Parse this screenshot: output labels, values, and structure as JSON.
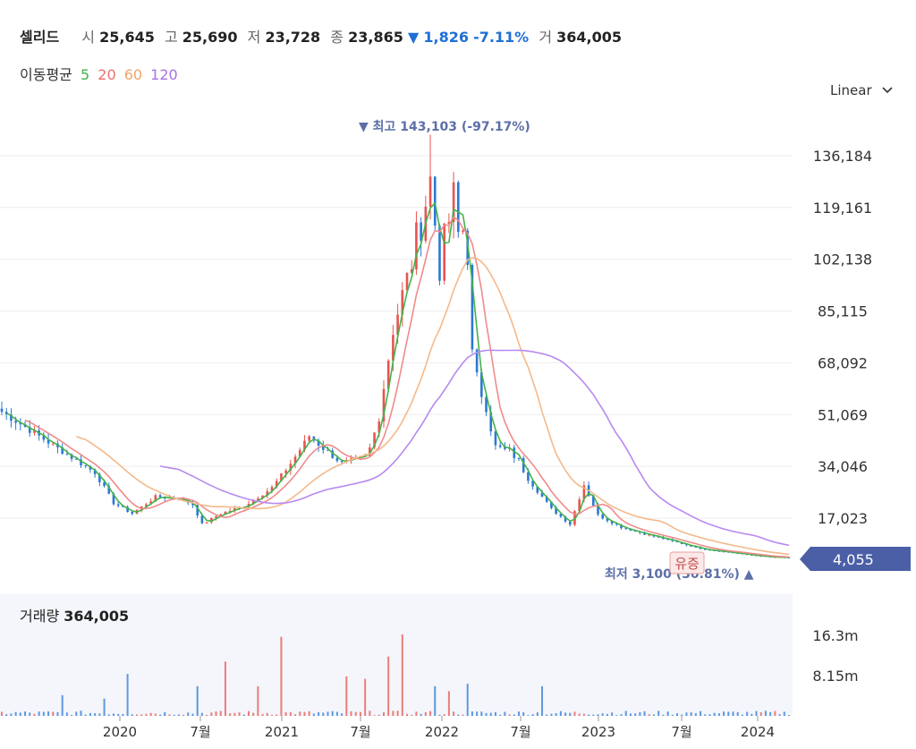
{
  "header": {
    "name": "셀리드",
    "open_label": "시",
    "open": "25,645",
    "high_label": "고",
    "high": "25,690",
    "low_label": "저",
    "low": "23,728",
    "close_label": "종",
    "close": "23,865",
    "change_arrow": "▼",
    "change": "1,826",
    "change_pct": "-7.11%",
    "volume_label": "거",
    "volume": "364,005"
  },
  "ma_legend": {
    "label": "이동평균",
    "items": [
      "5",
      "20",
      "60",
      "120"
    ]
  },
  "scale_selector": {
    "value": "Linear"
  },
  "annotations": {
    "high_text": "▼ 최고 143,103 (-97.17%)",
    "low_text": "최저 3,100 (30.81%) ▲",
    "badge": "유증",
    "current_price": "4,055"
  },
  "volume_header": {
    "label": "거래량",
    "value": "364,005"
  },
  "colors": {
    "up": "#e8544f",
    "down": "#2d78d4",
    "ma5": "#43b34a",
    "ma20": "#ef8b8b",
    "ma60": "#f4b98a",
    "ma120": "#b889f0",
    "change": "#1f6fd6",
    "price_tag": "#4a5fa6",
    "grid": "#eeeeee"
  },
  "chart_data": {
    "type": "candlestick",
    "price_axis_ticks": [
      136184,
      119161,
      102138,
      85115,
      68092,
      51069,
      34046,
      17023
    ],
    "price_axis_labels": [
      "136,184",
      "119,161",
      "102,138",
      "85,115",
      "68,092",
      "51,069",
      "34,046",
      "17,023"
    ],
    "ylim": [
      2000,
      150000
    ],
    "volume_axis_ticks": [
      16300000,
      8150000
    ],
    "volume_axis_labels": [
      "16.3m",
      "8.15m"
    ],
    "x_ticks": [
      "2020",
      "7월",
      "2021",
      "7월",
      "2022",
      "7월",
      "2023",
      "7월",
      "2024"
    ],
    "high": 143103,
    "low": 3100,
    "last": 4055,
    "moving_averages": [
      "5",
      "20",
      "60",
      "120"
    ],
    "close_path": [
      [
        0,
        52000
      ],
      [
        10,
        42000
      ],
      [
        20,
        32000
      ],
      [
        24,
        22000
      ],
      [
        28,
        18500
      ],
      [
        33,
        24000
      ],
      [
        38,
        23500
      ],
      [
        41,
        21500
      ],
      [
        43,
        15000
      ],
      [
        47,
        18500
      ],
      [
        52,
        21000
      ],
      [
        58,
        27000
      ],
      [
        62,
        35000
      ],
      [
        66,
        44000
      ],
      [
        69,
        40000
      ],
      [
        73,
        35000
      ],
      [
        78,
        37000
      ],
      [
        79,
        40000
      ],
      [
        81,
        50000
      ],
      [
        84,
        80000
      ],
      [
        87,
        95000
      ],
      [
        90,
        115000
      ],
      [
        92,
        128000
      ],
      [
        94,
        100000
      ],
      [
        96,
        115000
      ],
      [
        97,
        122000
      ],
      [
        98,
        110000
      ],
      [
        99,
        112000
      ],
      [
        100,
        105000
      ],
      [
        101,
        70000
      ],
      [
        102,
        62000
      ],
      [
        104,
        55000
      ],
      [
        106,
        40000
      ],
      [
        110,
        38000
      ],
      [
        113,
        30000
      ],
      [
        115,
        26000
      ],
      [
        118,
        20000
      ],
      [
        122,
        15000
      ],
      [
        125,
        28000
      ],
      [
        128,
        18000
      ],
      [
        133,
        14000
      ],
      [
        140,
        11000
      ],
      [
        150,
        7000
      ],
      [
        160,
        5000
      ],
      [
        165,
        4200
      ],
      [
        169,
        4055
      ]
    ],
    "volume_spikes": [
      [
        13,
        4200000
      ],
      [
        22,
        3500000
      ],
      [
        27,
        8500000
      ],
      [
        42,
        6000000
      ],
      [
        48,
        11000000
      ],
      [
        55,
        6000000
      ],
      [
        60,
        16000000
      ],
      [
        74,
        8000000
      ],
      [
        78,
        7500000
      ],
      [
        83,
        12000000
      ],
      [
        86,
        16500000
      ],
      [
        93,
        6000000
      ],
      [
        96,
        5000000
      ],
      [
        100,
        6500000
      ],
      [
        116,
        6000000
      ]
    ]
  }
}
